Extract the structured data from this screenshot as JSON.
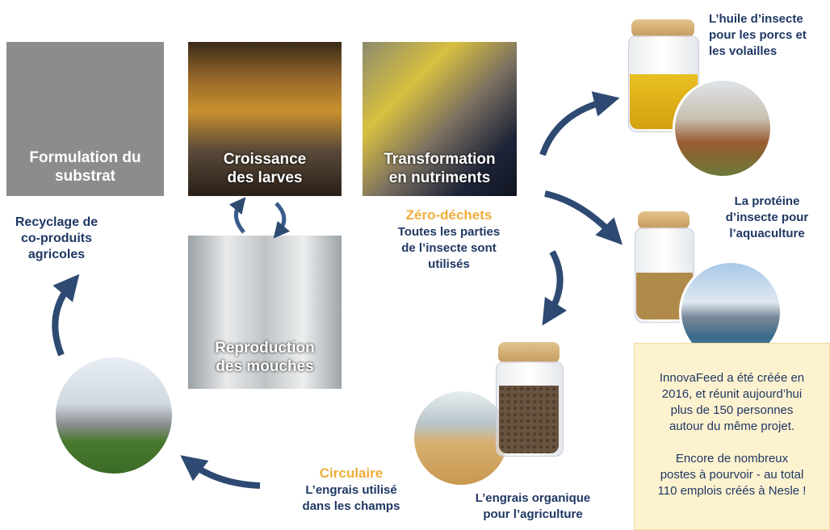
{
  "steps": [
    {
      "lines": [
        "Formulation du",
        "substrat"
      ]
    },
    {
      "lines": [
        "Croissance",
        "des larves"
      ]
    },
    {
      "lines": [
        "Transformation",
        "en nutriments"
      ]
    },
    {
      "lines": [
        "Reproduction",
        "des mouches"
      ]
    }
  ],
  "recycling": {
    "lines": [
      "Recyclage de",
      "co-produits",
      "agricoles"
    ]
  },
  "zero_waste": {
    "title": "Zéro-déchets",
    "lines": [
      "Toutes les parties",
      "de l’insecte sont",
      "utilisés"
    ]
  },
  "products": [
    {
      "lines": [
        "L’huile d’insecte",
        "pour les porcs et",
        "les volailles"
      ]
    },
    {
      "lines": [
        "La protéine",
        "d’insecte pour",
        "l’aquaculture"
      ]
    },
    {
      "lines": [
        "L’engrais organique",
        "pour l’agriculture"
      ]
    }
  ],
  "circular": {
    "title": "Circulaire",
    "lines": [
      "L’engrais utilisé",
      "dans les champs"
    ]
  },
  "info_box": {
    "paragraphs": [
      [
        "InnovaFeed a été créée en",
        "2016, et réunit aujourd’hui",
        "plus de 150 personnes",
        "autour du même projet."
      ],
      [
        "Encore de nombreux",
        "postes à pourvoir - au total",
        "110 emplois créés à Nesle !"
      ]
    ]
  }
}
